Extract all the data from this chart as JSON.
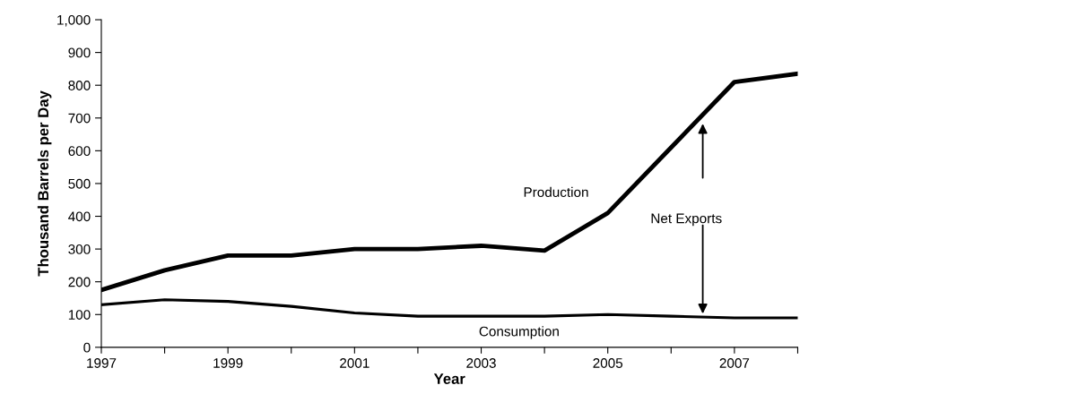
{
  "chart_data": {
    "type": "line",
    "xlabel": "Year",
    "ylabel": "Thousand Barrels per Day",
    "x": [
      1997,
      1998,
      1999,
      2000,
      2001,
      2002,
      2003,
      2004,
      2005,
      2006,
      2007,
      2008
    ],
    "series": [
      {
        "name": "Production",
        "color": "#000000",
        "values": [
          175,
          235,
          280,
          280,
          300,
          300,
          310,
          295,
          410,
          610,
          810,
          835
        ]
      },
      {
        "name": "Consumption",
        "color": "#000000",
        "values": [
          130,
          145,
          140,
          125,
          105,
          95,
          95,
          95,
          100,
          95,
          90,
          90
        ]
      }
    ],
    "annotations": [
      "Net Exports"
    ],
    "xlim": [
      1997,
      2008
    ],
    "xticks": [
      1997,
      {
        "value": 1998,
        "label": null
      },
      1999,
      {
        "value": 2000,
        "label": null
      },
      2001,
      {
        "value": 2002,
        "label": null
      },
      2003,
      {
        "value": 2004,
        "label": null
      },
      2005,
      {
        "value": 2006,
        "label": null
      },
      2007,
      {
        "value": 2008,
        "label": null
      }
    ],
    "ylim": [
      0,
      1000
    ],
    "yticks": [
      0,
      100,
      200,
      300,
      400,
      500,
      600,
      700,
      800,
      900,
      {
        "value": 1000,
        "label": "1,000"
      }
    ],
    "grid": false,
    "legend": false,
    "marker": "none",
    "line_style": "solid"
  }
}
